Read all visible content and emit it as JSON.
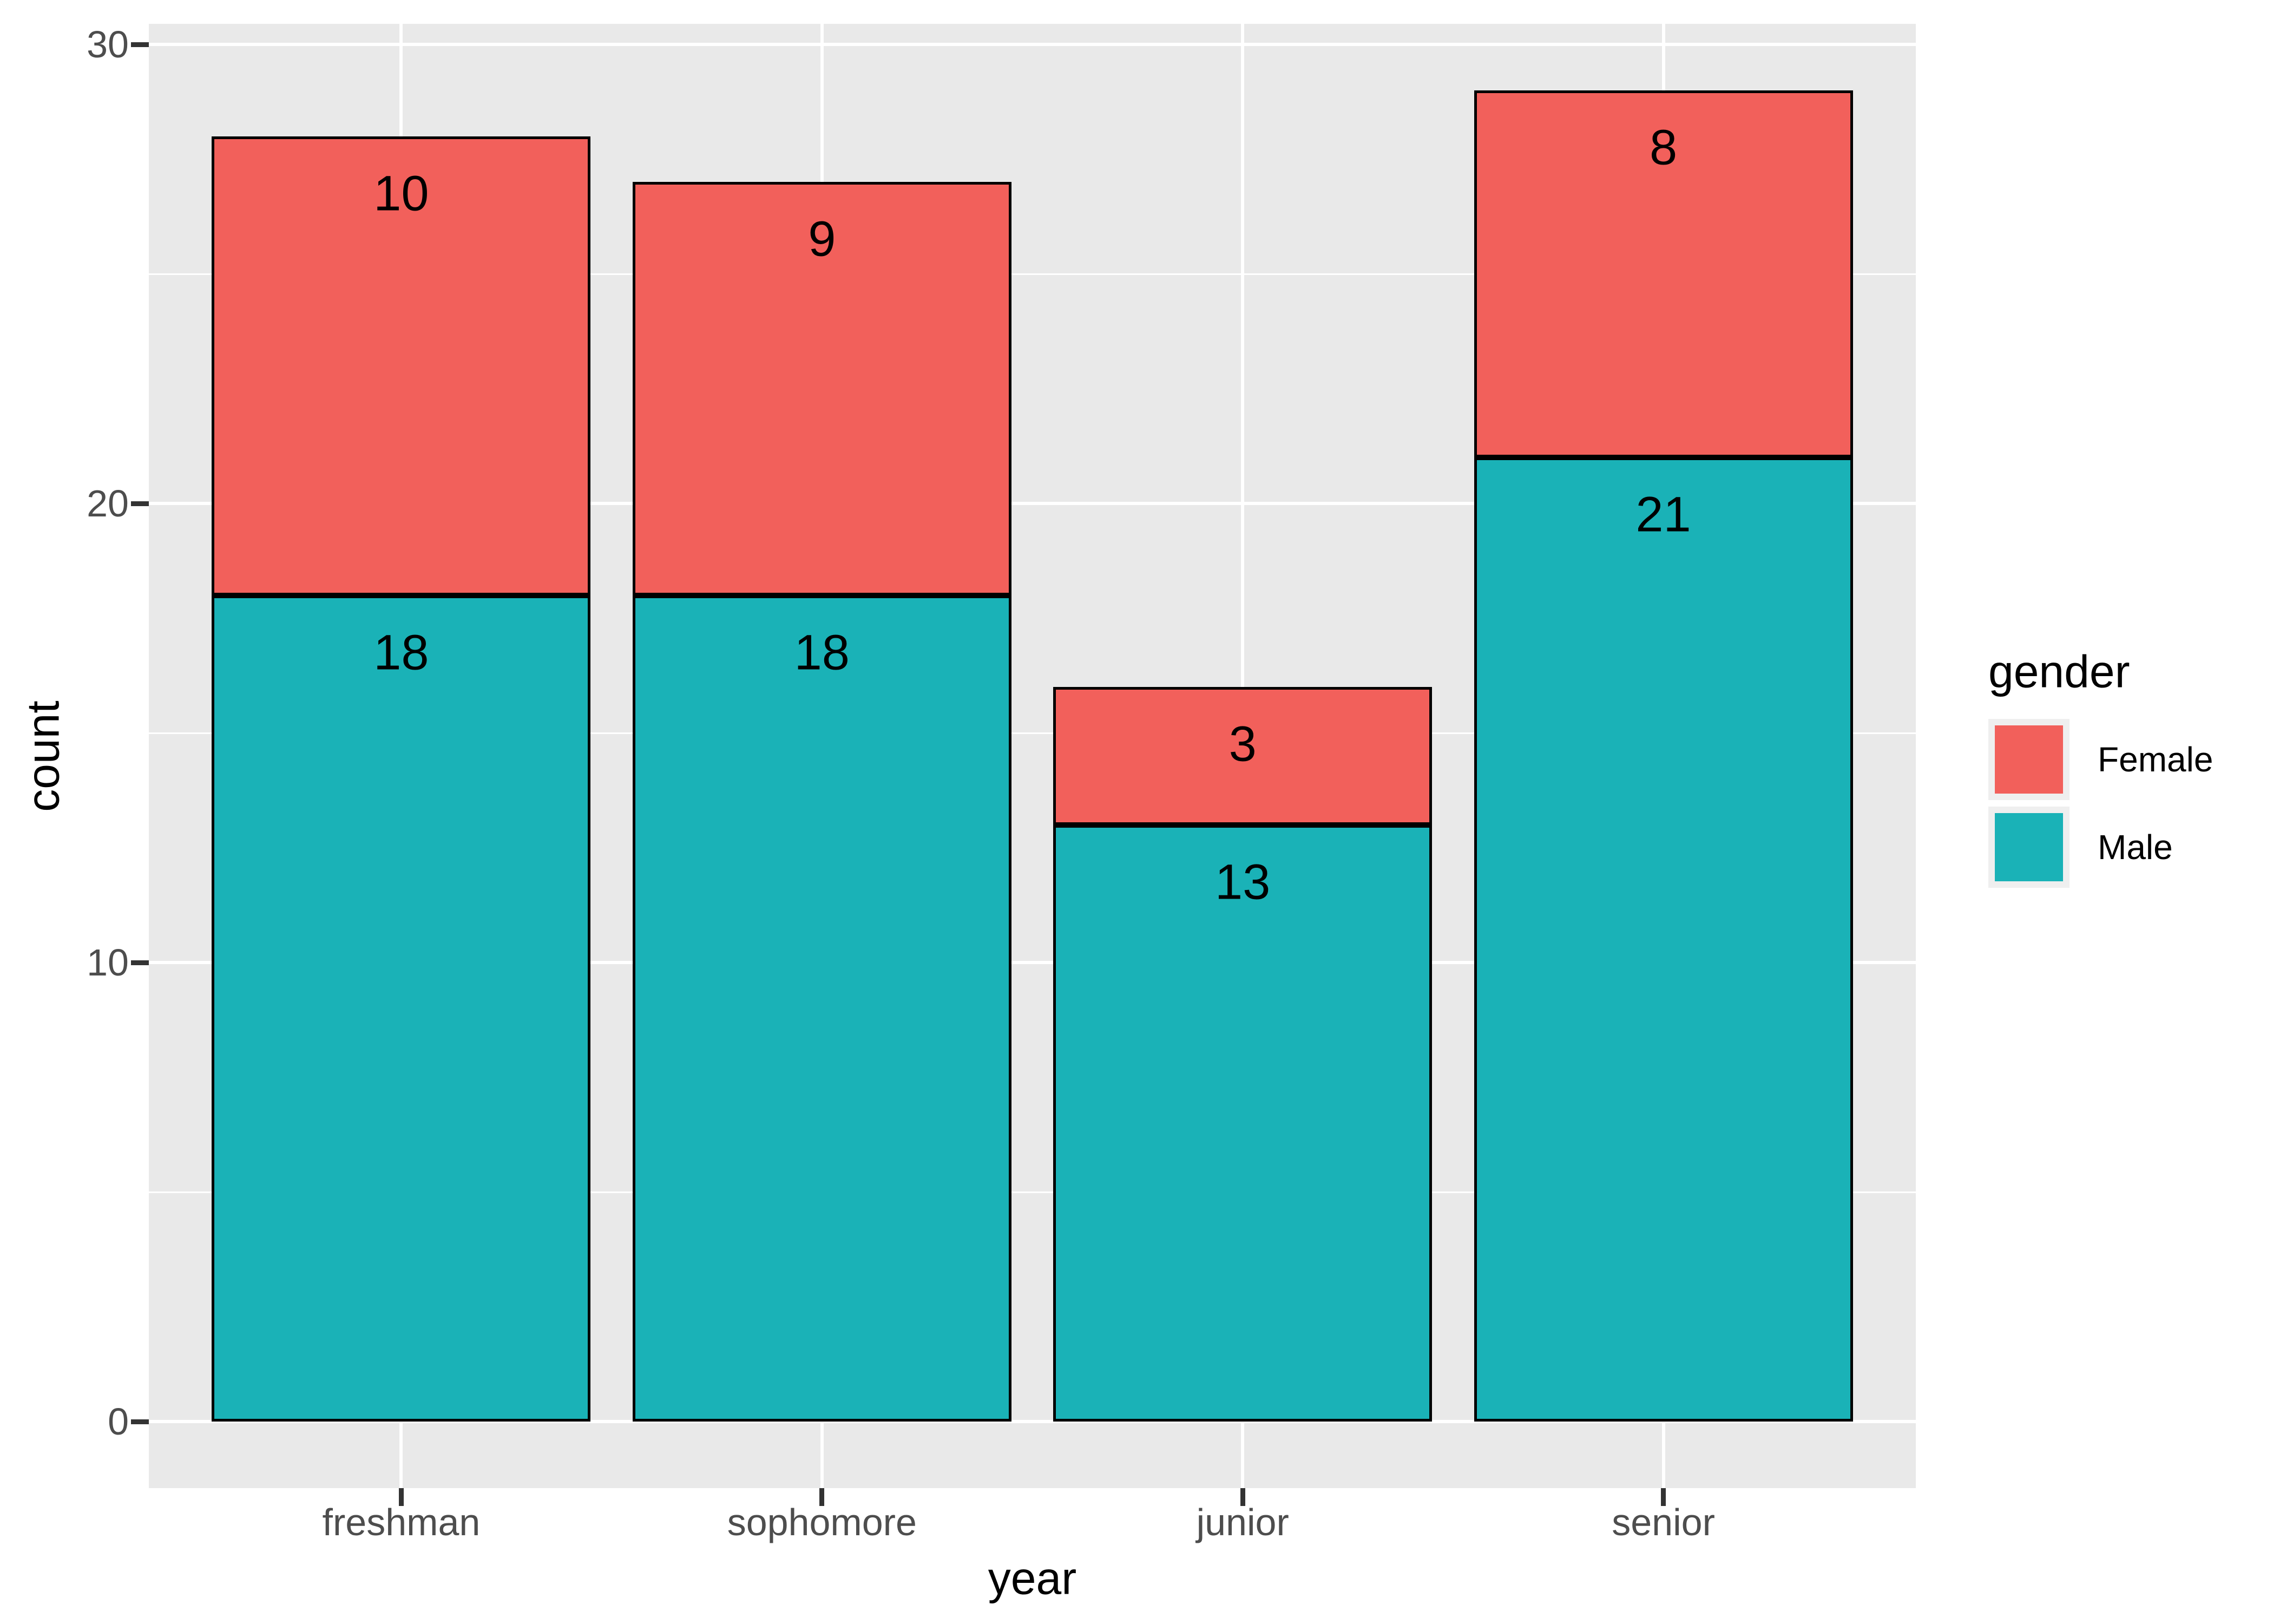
{
  "chart_data": {
    "type": "bar",
    "stacked": true,
    "categories": [
      "freshman",
      "sophomore",
      "junior",
      "senior"
    ],
    "series": [
      {
        "name": "Male",
        "color": "#1AB2B7",
        "values": [
          18,
          18,
          13,
          21
        ]
      },
      {
        "name": "Female",
        "color": "#F2605B",
        "values": [
          10,
          9,
          3,
          8
        ]
      }
    ],
    "stack_order_bottom_to_top": [
      "Male",
      "Female"
    ],
    "totals": [
      28,
      27,
      16,
      29
    ],
    "title": "",
    "xlabel": "year",
    "ylabel": "count",
    "y_major_ticks": [
      0,
      10,
      20,
      30
    ],
    "y_minor_ticks": [
      5,
      15,
      25
    ],
    "ylim": [
      0,
      30
    ],
    "grid": true,
    "bar_value_labels": true,
    "legend": {
      "title": "gender",
      "position": "right",
      "entries": [
        {
          "label": "Female",
          "color": "#F2605B"
        },
        {
          "label": "Male",
          "color": "#1AB2B7"
        }
      ]
    }
  },
  "style_colors": {
    "panel_bg": "#E9E9E9",
    "grid": "#FFFFFF",
    "axis_text": "#4D4D4D",
    "tick_mark": "#333333",
    "bar_border": "#000000",
    "legend_key_bg": "#EFEFEF",
    "label_text": "#000000"
  }
}
